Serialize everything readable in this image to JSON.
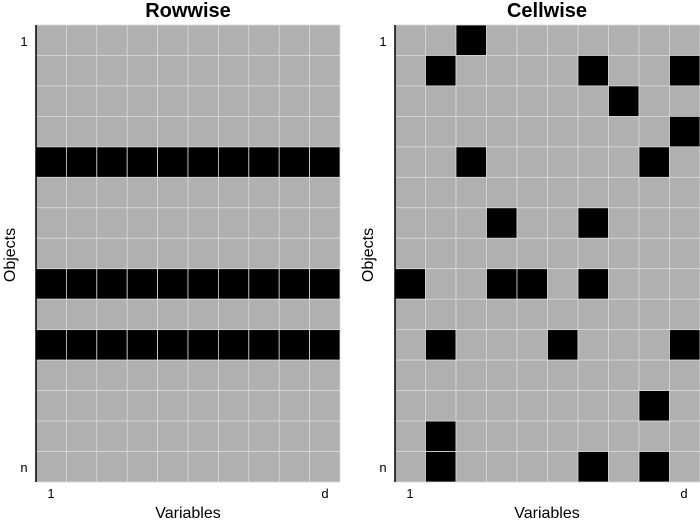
{
  "chart_data": [
    {
      "type": "heatmap",
      "title": "Rowwise",
      "xlabel": "Variables",
      "ylabel": "Objects",
      "x_ticks": {
        "first": "1",
        "last": "d"
      },
      "y_ticks": {
        "first": "1",
        "last": "n"
      },
      "rows": 15,
      "cols": 10,
      "outlier_rows": [
        4,
        8,
        10
      ],
      "outlier_cells": []
    },
    {
      "type": "heatmap",
      "title": "Cellwise",
      "xlabel": "Variables",
      "ylabel": "Objects",
      "x_ticks": {
        "first": "1",
        "last": "d"
      },
      "y_ticks": {
        "first": "1",
        "last": "n"
      },
      "rows": 15,
      "cols": 10,
      "outlier_rows": [],
      "outlier_cells": [
        [
          0,
          2
        ],
        [
          1,
          1
        ],
        [
          1,
          6
        ],
        [
          1,
          9
        ],
        [
          2,
          7
        ],
        [
          3,
          9
        ],
        [
          4,
          2
        ],
        [
          4,
          8
        ],
        [
          6,
          3
        ],
        [
          6,
          6
        ],
        [
          8,
          0
        ],
        [
          8,
          3
        ],
        [
          8,
          4
        ],
        [
          8,
          6
        ],
        [
          10,
          1
        ],
        [
          10,
          5
        ],
        [
          10,
          9
        ],
        [
          12,
          8
        ],
        [
          13,
          1
        ],
        [
          14,
          1
        ],
        [
          14,
          6
        ],
        [
          14,
          8
        ]
      ]
    }
  ],
  "colors": {
    "cell": "#b0b0b0",
    "outlier": "#000000",
    "grid": "#d8d8d8"
  }
}
